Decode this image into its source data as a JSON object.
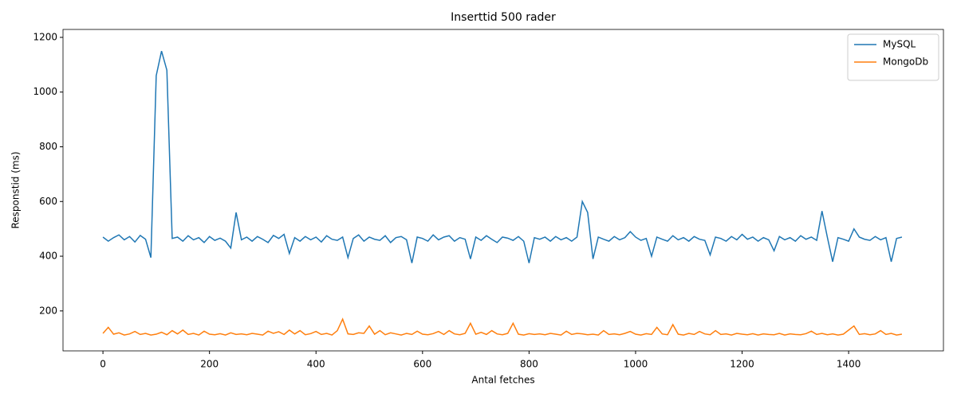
{
  "chart_data": {
    "type": "line",
    "title": "Inserttid 500 rader",
    "xlabel": "Antal fetches",
    "ylabel": "Responstid (ms)",
    "x": [
      0,
      10,
      20,
      30,
      40,
      50,
      60,
      70,
      80,
      90,
      100,
      110,
      120,
      130,
      140,
      150,
      160,
      170,
      180,
      190,
      200,
      210,
      220,
      230,
      240,
      250,
      260,
      270,
      280,
      290,
      300,
      310,
      320,
      330,
      340,
      350,
      360,
      370,
      380,
      390,
      400,
      410,
      420,
      430,
      440,
      450,
      460,
      470,
      480,
      490,
      500,
      510,
      520,
      530,
      540,
      550,
      560,
      570,
      580,
      590,
      600,
      610,
      620,
      630,
      640,
      650,
      660,
      670,
      680,
      690,
      700,
      710,
      720,
      730,
      740,
      750,
      760,
      770,
      780,
      790,
      800,
      810,
      820,
      830,
      840,
      850,
      860,
      870,
      880,
      890,
      900,
      910,
      920,
      930,
      940,
      950,
      960,
      970,
      980,
      990,
      1000,
      1010,
      1020,
      1030,
      1040,
      1050,
      1060,
      1070,
      1080,
      1090,
      1100,
      1110,
      1120,
      1130,
      1140,
      1150,
      1160,
      1170,
      1180,
      1190,
      1200,
      1210,
      1220,
      1230,
      1240,
      1250,
      1260,
      1270,
      1280,
      1290,
      1300,
      1310,
      1320,
      1330,
      1340,
      1350,
      1360,
      1370,
      1380,
      1390,
      1400,
      1410,
      1420,
      1430,
      1440,
      1450,
      1460,
      1470,
      1480,
      1490,
      1500
    ],
    "series": [
      {
        "name": "MySQL",
        "color": "#1f77b4",
        "values": [
          470,
          455,
          468,
          478,
          460,
          472,
          452,
          476,
          462,
          395,
          1060,
          1150,
          1080,
          465,
          470,
          455,
          475,
          460,
          468,
          450,
          472,
          458,
          466,
          455,
          430,
          560,
          460,
          470,
          455,
          472,
          462,
          450,
          476,
          465,
          480,
          410,
          468,
          455,
          472,
          460,
          470,
          452,
          475,
          462,
          458,
          470,
          395,
          465,
          478,
          455,
          470,
          462,
          458,
          475,
          450,
          468,
          472,
          460,
          375,
          470,
          465,
          455,
          478,
          460,
          470,
          475,
          455,
          468,
          462,
          390,
          470,
          458,
          475,
          462,
          450,
          470,
          466,
          458,
          472,
          455,
          375,
          468,
          462,
          470,
          455,
          472,
          460,
          468,
          455,
          470,
          600,
          560,
          390,
          470,
          462,
          455,
          472,
          460,
          468,
          490,
          470,
          458,
          465,
          400,
          470,
          462,
          455,
          475,
          460,
          468,
          455,
          472,
          462,
          458,
          405,
          470,
          465,
          455,
          472,
          460,
          480,
          462,
          470,
          455,
          468,
          460,
          420,
          472,
          460,
          468,
          455,
          475,
          462,
          470,
          458,
          565,
          470,
          380,
          468,
          462,
          455,
          500,
          470,
          462,
          458,
          472,
          460,
          468,
          380,
          465,
          470
        ]
      },
      {
        "name": "MongoDb",
        "color": "#ff7f0e",
        "values": [
          118,
          140,
          115,
          120,
          112,
          116,
          125,
          114,
          118,
          112,
          115,
          122,
          113,
          128,
          116,
          130,
          114,
          118,
          112,
          126,
          115,
          113,
          117,
          112,
          120,
          114,
          116,
          113,
          118,
          115,
          112,
          126,
          118,
          124,
          114,
          130,
          116,
          128,
          113,
          117,
          125,
          114,
          118,
          112,
          128,
          170,
          116,
          114,
          120,
          118,
          145,
          115,
          128,
          113,
          120,
          116,
          112,
          118,
          114,
          126,
          115,
          113,
          117,
          125,
          114,
          128,
          116,
          113,
          118,
          155,
          115,
          122,
          114,
          128,
          116,
          113,
          118,
          155,
          115,
          112,
          117,
          114,
          116,
          113,
          118,
          115,
          112,
          126,
          114,
          118,
          116,
          113,
          115,
          112,
          128,
          114,
          116,
          113,
          118,
          125,
          115,
          112,
          117,
          114,
          140,
          116,
          113,
          150,
          115,
          112,
          118,
          114,
          125,
          116,
          113,
          128,
          114,
          116,
          112,
          118,
          115,
          113,
          117,
          112,
          116,
          114,
          113,
          118,
          112,
          116,
          114,
          113,
          117,
          126,
          114,
          118,
          113,
          116,
          112,
          115,
          130,
          145,
          114,
          117,
          113,
          116,
          128,
          114,
          118,
          112,
          115
        ]
      }
    ],
    "xlim": [
      -75,
      1578
    ],
    "ylim": [
      54,
      1229
    ],
    "xticks": [
      0,
      200,
      400,
      600,
      800,
      1000,
      1200,
      1400
    ],
    "yticks": [
      200,
      400,
      600,
      800,
      1000,
      1200
    ],
    "legend": "upper right"
  }
}
